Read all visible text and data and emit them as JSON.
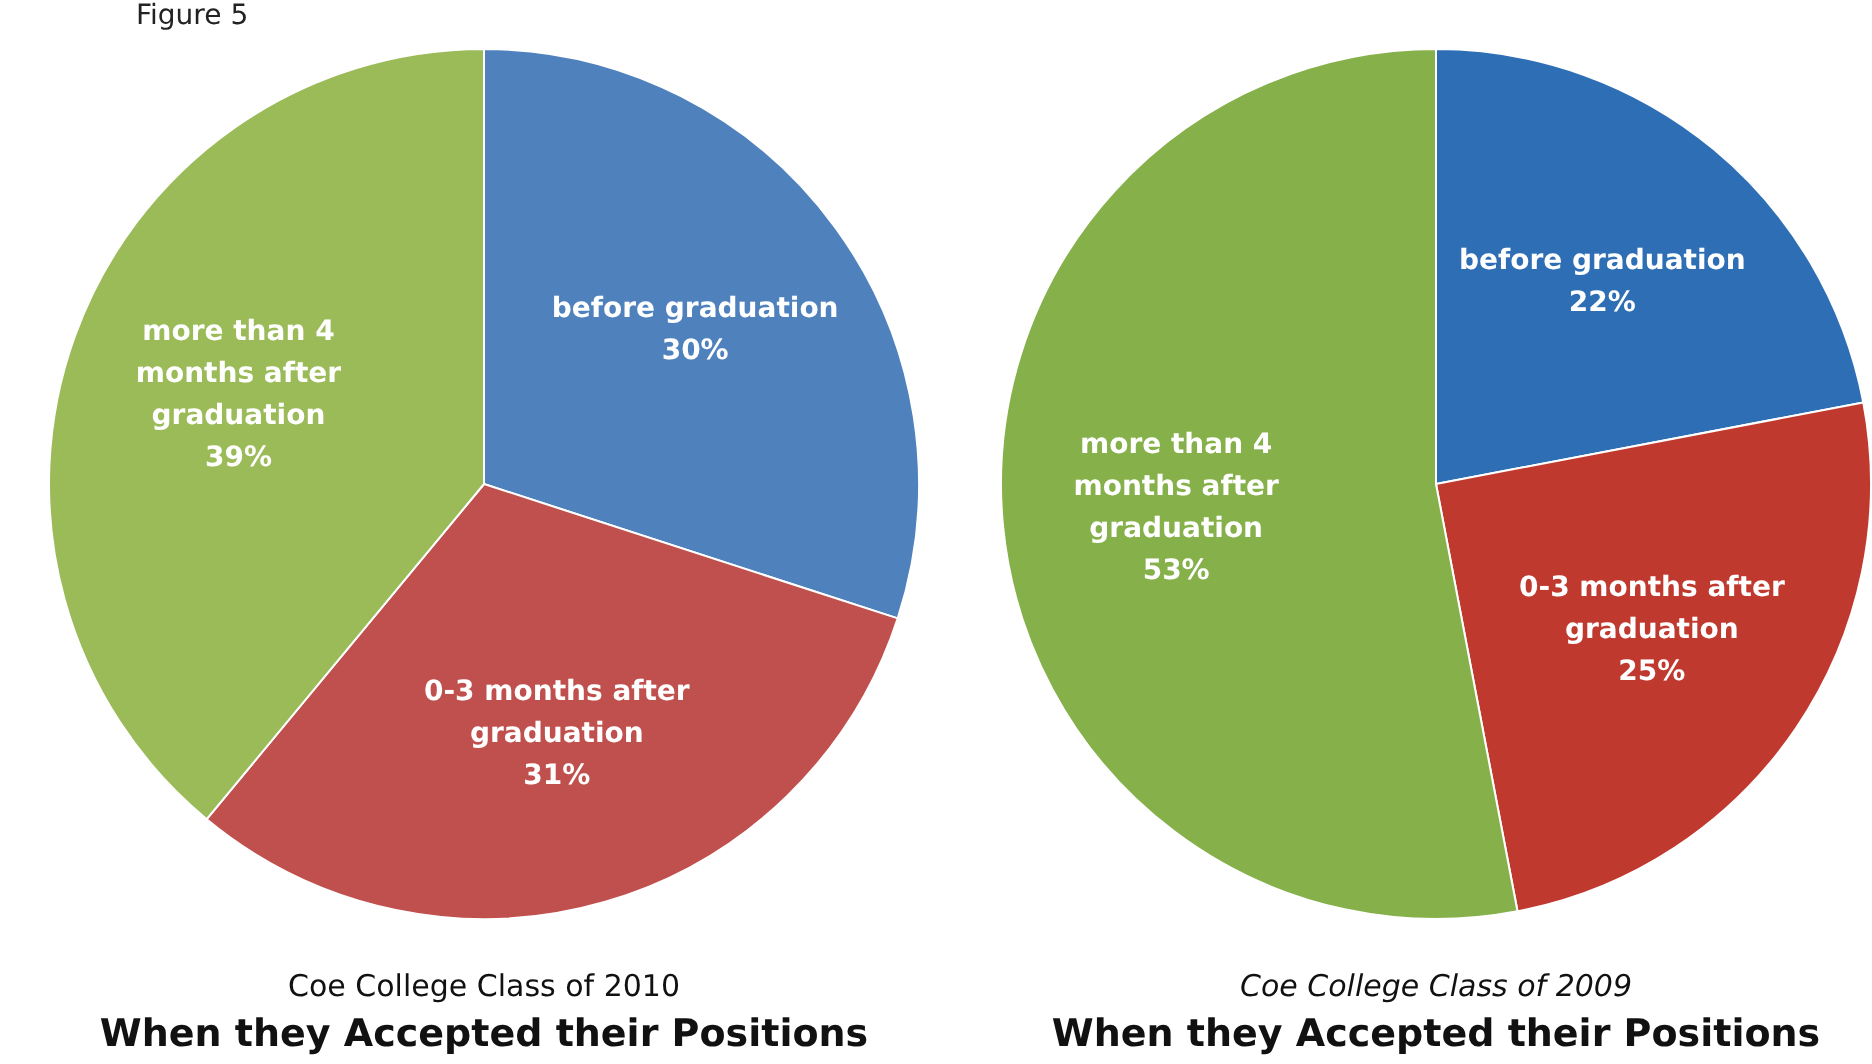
{
  "chart_data": [
    {
      "type": "pie",
      "subtitle": "Coe College Class of 2010",
      "title": "When they Accepted their Positions",
      "annotations": [
        "Figure 5"
      ],
      "categories": [
        "before graduation",
        "0-3 months after\ngraduation",
        "more than 4\nmonths after\ngraduation"
      ],
      "values": [
        30,
        31,
        39
      ],
      "value_labels": [
        "30%",
        "31%",
        "39%"
      ],
      "colors": [
        "#4f81bd",
        "#c0504d",
        "#9bbb59"
      ],
      "legend": false
    },
    {
      "type": "pie",
      "subtitle": "Coe College Class of 2009",
      "title": "When they Accepted their Positions",
      "categories": [
        "before graduation",
        "0-3 months after\ngraduation",
        "more than 4\nmonths after\ngraduation"
      ],
      "values": [
        22,
        25,
        53
      ],
      "value_labels": [
        "22%",
        "25%",
        "53%"
      ],
      "colors": [
        "#2e6eb5",
        "#c0392f",
        "#86b04a"
      ],
      "legend": false
    }
  ]
}
